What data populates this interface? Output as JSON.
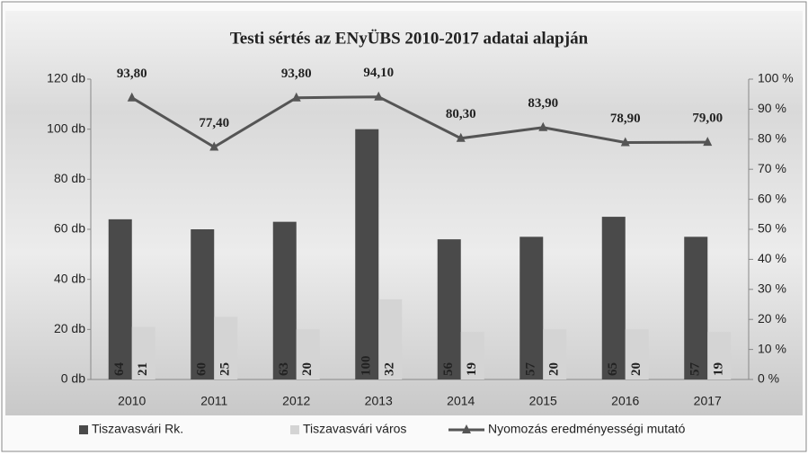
{
  "chart_data": {
    "type": "bar",
    "title": "Testi sértés az ENyÜBS 2010-2017 adatai alapján",
    "categories": [
      "2010",
      "2011",
      "2012",
      "2013",
      "2014",
      "2015",
      "2016",
      "2017"
    ],
    "series": [
      {
        "name": "Tiszavasvári Rk.",
        "color": "#4a4a4a",
        "values": [
          64,
          60,
          63,
          100,
          56,
          57,
          65,
          57
        ]
      },
      {
        "name": "Tiszavasvári város",
        "color": "#d4d4d4",
        "values": [
          21,
          25,
          20,
          32,
          19,
          20,
          20,
          19
        ]
      },
      {
        "name": "Nyomozás eredményességi mutató",
        "color": "#555555",
        "type": "line",
        "axis": "y2",
        "values": [
          93.8,
          77.4,
          93.8,
          94.1,
          80.3,
          83.9,
          78.9,
          79.0
        ],
        "value_labels": [
          "93,80",
          "77,40",
          "93,80",
          "94,10",
          "80,30",
          "83,90",
          "78,90",
          "79,00"
        ]
      }
    ],
    "ylim": [
      0,
      120
    ],
    "yticks": [
      {
        "value": 0,
        "label": "0 db"
      },
      {
        "value": 20,
        "label": "20 db"
      },
      {
        "value": 40,
        "label": "40 db"
      },
      {
        "value": 60,
        "label": "60 db"
      },
      {
        "value": 80,
        "label": "80 db"
      },
      {
        "value": 100,
        "label": "100 db"
      },
      {
        "value": 120,
        "label": "120 db"
      }
    ],
    "y2lim": [
      0,
      100
    ],
    "y2ticks": [
      {
        "value": 0,
        "label": "0 %"
      },
      {
        "value": 10,
        "label": "10 %"
      },
      {
        "value": 20,
        "label": "20 %"
      },
      {
        "value": 30,
        "label": "30 %"
      },
      {
        "value": 40,
        "label": "40 %"
      },
      {
        "value": 50,
        "label": "50 %"
      },
      {
        "value": 60,
        "label": "60 %"
      },
      {
        "value": 70,
        "label": "70 %"
      },
      {
        "value": 80,
        "label": "80 %"
      },
      {
        "value": 90,
        "label": "90 %"
      },
      {
        "value": 100,
        "label": "100 %"
      }
    ],
    "grid": false
  }
}
